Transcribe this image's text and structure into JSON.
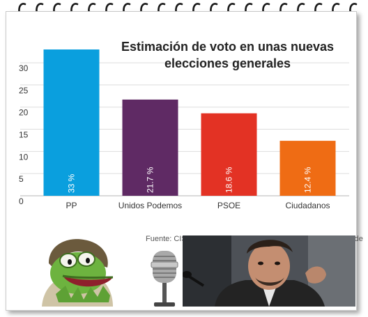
{
  "chart_data": {
    "type": "bar",
    "title": "Estimación de voto en unas nuevas elecciones generales",
    "categories": [
      "PP",
      "Unidos Podemos",
      "PSOE",
      "Ciudadanos"
    ],
    "values": [
      33,
      21.7,
      18.6,
      12.4
    ],
    "value_labels": [
      "33 %",
      "21.7 %",
      "18.6 %",
      "12.4 %"
    ],
    "colors": [
      "#0a9fde",
      "#5f2a64",
      "#e33224",
      "#ef6c14"
    ],
    "yticks": [
      0,
      5,
      10,
      15,
      20,
      25,
      30
    ],
    "ylim": [
      0,
      33
    ],
    "grid": true,
    "xlabel": "",
    "ylabel": ""
  },
  "source": "Fuente: CIS (Centro de Investigaciones Sociológicas). Enero de 2"
}
